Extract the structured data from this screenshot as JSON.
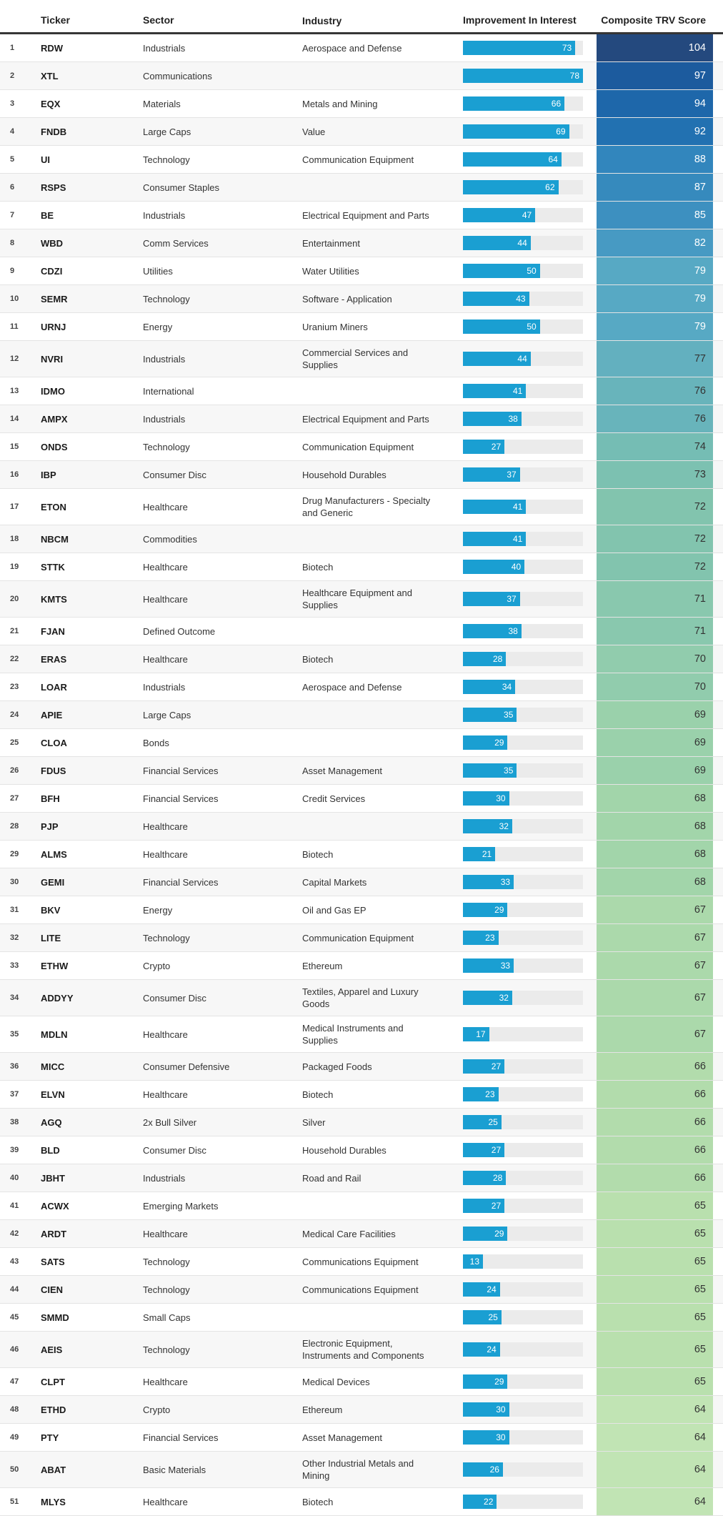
{
  "header": {
    "rank": "",
    "ticker": "Ticker",
    "sector": "Sector",
    "industry": "Industry",
    "interest": "Improvement In Interest",
    "score": "Composite TRV Score"
  },
  "colors": {
    "bar_fill": "#1a9fd2",
    "bar_track": "#ebebeb",
    "header_border": "#363636",
    "row_alt_background": "#f7f7f7",
    "score_dark_text_max": 77,
    "score_scale": {
      "104": "#24497e",
      "97": "#1c5b9e",
      "94": "#1e67aa",
      "92": "#2271b1",
      "88": "#3286bd",
      "87": "#368abd",
      "85": "#3d90c0",
      "82": "#479ac3",
      "79": "#57a9c4",
      "77": "#63b0bf",
      "76": "#68b4bb",
      "74": "#75bdb4",
      "73": "#7cc1b1",
      "72": "#82c4ae",
      "71": "#89c8ae",
      "70": "#91ccad",
      "69": "#9ad1ab",
      "68": "#a2d5aa",
      "67": "#abd9ab",
      "66": "#b2dcac",
      "65": "#b9e0ae",
      "64": "#c1e4b4"
    }
  },
  "chart_data": {
    "type": "table",
    "columns": [
      "Rank",
      "Ticker",
      "Sector",
      "Industry",
      "Improvement In Interest",
      "Composite TRV Score"
    ],
    "embedded_bar_column": "Improvement In Interest",
    "bar_axis_max": 78,
    "rows": [
      [
        1,
        "RDW",
        "Industrials",
        "Aerospace and Defense",
        73,
        104
      ],
      [
        2,
        "XTL",
        "Communications",
        "",
        78,
        97
      ],
      [
        3,
        "EQX",
        "Materials",
        "Metals and Mining",
        66,
        94
      ],
      [
        4,
        "FNDB",
        "Large Caps",
        "Value",
        69,
        92
      ],
      [
        5,
        "UI",
        "Technology",
        "Communication Equipment",
        64,
        88
      ],
      [
        6,
        "RSPS",
        "Consumer Staples",
        "",
        62,
        87
      ],
      [
        7,
        "BE",
        "Industrials",
        "Electrical Equipment and Parts",
        47,
        85
      ],
      [
        8,
        "WBD",
        "Comm Services",
        "Entertainment",
        44,
        82
      ],
      [
        9,
        "CDZI",
        "Utilities",
        "Water Utilities",
        50,
        79
      ],
      [
        10,
        "SEMR",
        "Technology",
        "Software - Application",
        43,
        79
      ],
      [
        11,
        "URNJ",
        "Energy",
        "Uranium Miners",
        50,
        79
      ],
      [
        12,
        "NVRI",
        "Industrials",
        "Commercial Services and Supplies",
        44,
        77
      ],
      [
        13,
        "IDMO",
        "International",
        "",
        41,
        76
      ],
      [
        14,
        "AMPX",
        "Industrials",
        "Electrical Equipment and Parts",
        38,
        76
      ],
      [
        15,
        "ONDS",
        "Technology",
        "Communication Equipment",
        27,
        74
      ],
      [
        16,
        "IBP",
        "Consumer Disc",
        "Household Durables",
        37,
        73
      ],
      [
        17,
        "ETON",
        "Healthcare",
        "Drug Manufacturers - Specialty and Generic",
        41,
        72
      ],
      [
        18,
        "NBCM",
        "Commodities",
        "",
        41,
        72
      ],
      [
        19,
        "STTK",
        "Healthcare",
        "Biotech",
        40,
        72
      ],
      [
        20,
        "KMTS",
        "Healthcare",
        "Healthcare Equipment and Supplies",
        37,
        71
      ],
      [
        21,
        "FJAN",
        "Defined Outcome",
        "",
        38,
        71
      ],
      [
        22,
        "ERAS",
        "Healthcare",
        "Biotech",
        28,
        70
      ],
      [
        23,
        "LOAR",
        "Industrials",
        "Aerospace and Defense",
        34,
        70
      ],
      [
        24,
        "APIE",
        "Large Caps",
        "",
        35,
        69
      ],
      [
        25,
        "CLOA",
        "Bonds",
        "",
        29,
        69
      ],
      [
        26,
        "FDUS",
        "Financial Services",
        "Asset Management",
        35,
        69
      ],
      [
        27,
        "BFH",
        "Financial Services",
        "Credit Services",
        30,
        68
      ],
      [
        28,
        "PJP",
        "Healthcare",
        "",
        32,
        68
      ],
      [
        29,
        "ALMS",
        "Healthcare",
        "Biotech",
        21,
        68
      ],
      [
        30,
        "GEMI",
        "Financial Services",
        "Capital Markets",
        33,
        68
      ],
      [
        31,
        "BKV",
        "Energy",
        "Oil and Gas EP",
        29,
        67
      ],
      [
        32,
        "LITE",
        "Technology",
        "Communication Equipment",
        23,
        67
      ],
      [
        33,
        "ETHW",
        "Crypto",
        "Ethereum",
        33,
        67
      ],
      [
        34,
        "ADDYY",
        "Consumer Disc",
        "Textiles, Apparel and Luxury Goods",
        32,
        67
      ],
      [
        35,
        "MDLN",
        "Healthcare",
        "Medical Instruments and Supplies",
        17,
        67
      ],
      [
        36,
        "MICC",
        "Consumer Defensive",
        "Packaged Foods",
        27,
        66
      ],
      [
        37,
        "ELVN",
        "Healthcare",
        "Biotech",
        23,
        66
      ],
      [
        38,
        "AGQ",
        "2x Bull Silver",
        "Silver",
        25,
        66
      ],
      [
        39,
        "BLD",
        "Consumer Disc",
        "Household Durables",
        27,
        66
      ],
      [
        40,
        "JBHT",
        "Industrials",
        "Road and Rail",
        28,
        66
      ],
      [
        41,
        "ACWX",
        "Emerging Markets",
        "",
        27,
        65
      ],
      [
        42,
        "ARDT",
        "Healthcare",
        "Medical Care Facilities",
        29,
        65
      ],
      [
        43,
        "SATS",
        "Technology",
        "Communications Equipment",
        13,
        65
      ],
      [
        44,
        "CIEN",
        "Technology",
        "Communications Equipment",
        24,
        65
      ],
      [
        45,
        "SMMD",
        "Small Caps",
        "",
        25,
        65
      ],
      [
        46,
        "AEIS",
        "Technology",
        "Electronic Equipment, Instruments and Components",
        24,
        65
      ],
      [
        47,
        "CLPT",
        "Healthcare",
        "Medical Devices",
        29,
        65
      ],
      [
        48,
        "ETHD",
        "Crypto",
        "Ethereum",
        30,
        64
      ],
      [
        49,
        "PTY",
        "Financial Services",
        "Asset Management",
        30,
        64
      ],
      [
        50,
        "ABAT",
        "Basic Materials",
        "Other Industrial Metals and Mining",
        26,
        64
      ],
      [
        51,
        "MLYS",
        "Healthcare",
        "Biotech",
        22,
        64
      ]
    ]
  }
}
